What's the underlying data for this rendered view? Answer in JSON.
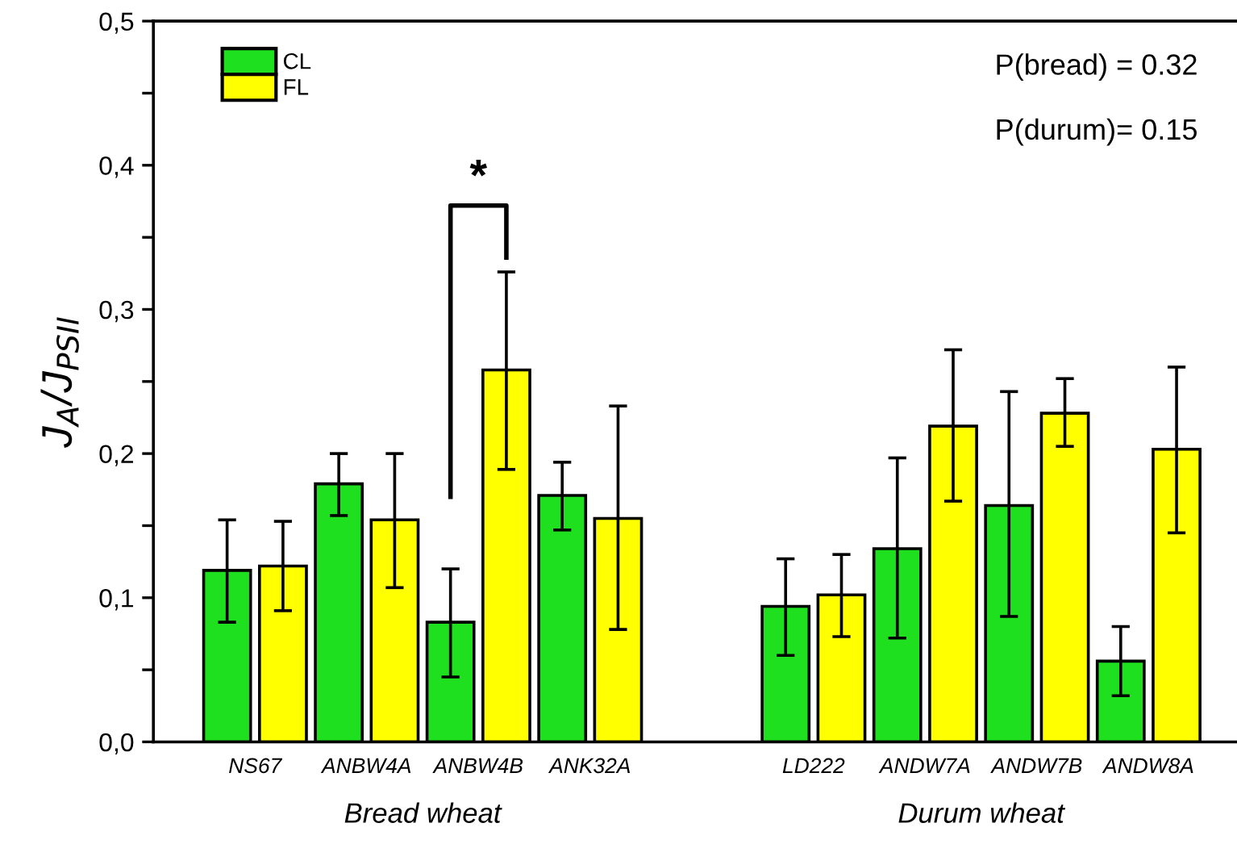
{
  "chart_data": {
    "type": "bar",
    "ylabel": "J$_{A}$/J$_{PSII}$",
    "categories": [
      "NS67",
      "ANBW4A",
      "ANBW4B",
      "ANK32A",
      null,
      "LD222",
      "ANDW7A",
      "ANDW7B",
      "ANDW8A"
    ],
    "series": [
      {
        "name": "CL",
        "color": "#1ee01e",
        "values": [
          0.119,
          0.179,
          0.083,
          0.171,
          null,
          0.094,
          0.134,
          0.164,
          0.056
        ],
        "errors": [
          [
            0.083,
            0.154
          ],
          [
            0.157,
            0.2
          ],
          [
            0.045,
            0.12
          ],
          [
            0.147,
            0.194
          ],
          null,
          [
            0.06,
            0.127
          ],
          [
            0.072,
            0.197
          ],
          [
            0.087,
            0.243
          ],
          [
            0.032,
            0.08
          ]
        ]
      },
      {
        "name": "FL",
        "color": "#ffff00",
        "values": [
          0.122,
          0.154,
          0.258,
          0.155,
          null,
          0.102,
          0.219,
          0.228,
          0.203
        ],
        "errors": [
          [
            0.091,
            0.153
          ],
          [
            0.107,
            0.2
          ],
          [
            0.189,
            0.326
          ],
          [
            0.078,
            0.233
          ],
          null,
          [
            0.073,
            0.13
          ],
          [
            0.167,
            0.272
          ],
          [
            0.205,
            0.252
          ],
          [
            0.145,
            0.26
          ]
        ]
      }
    ],
    "ylim": [
      0,
      0.5
    ],
    "yticks": [
      {
        "value": 0,
        "label": "0,0"
      },
      {
        "value": 0.05,
        "label": null
      },
      {
        "value": 0.1,
        "label": "0,1"
      },
      {
        "value": 0.15,
        "label": null
      },
      {
        "value": 0.2,
        "label": "0,2"
      },
      {
        "value": 0.25,
        "label": null
      },
      {
        "value": 0.3,
        "label": "0,3"
      },
      {
        "value": 0.35,
        "label": null
      },
      {
        "value": 0.4,
        "label": "0,4"
      },
      {
        "value": 0.45,
        "label": null
      },
      {
        "value": 0.5,
        "label": "0,5"
      }
    ],
    "annotations": [
      "*",
      "P(bread) = 0.32",
      "P(durum)= 0.15",
      "Bread wheat",
      "Durum wheat"
    ],
    "legend": "top left",
    "grid": false
  }
}
